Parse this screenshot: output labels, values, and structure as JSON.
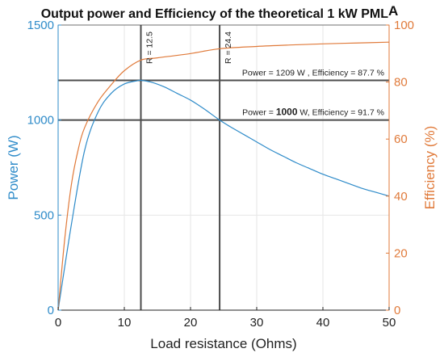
{
  "chart_data": {
    "type": "line",
    "title": "Output power and Efficiency of the theoretical 1 kW PML",
    "title_suffix": "A",
    "xlabel": "Load resistance (Ohms)",
    "ylabel_left": "Power (W)",
    "ylabel_right": "Efficiency (%)",
    "xlim": [
      0,
      50
    ],
    "ylim_left": [
      0,
      1500
    ],
    "ylim_right": [
      0,
      100
    ],
    "xticks": [
      "0",
      "10",
      "20",
      "30",
      "40",
      "50"
    ],
    "yticks_left": [
      "0",
      "500",
      "1000",
      "1500"
    ],
    "yticks_right": [
      "0",
      "20",
      "40",
      "60",
      "80",
      "100"
    ],
    "grid": true,
    "colors": {
      "power": "#2E8BC9",
      "efficiency": "#E07A3A",
      "reference": "#4D4D4D"
    },
    "series": [
      {
        "axis": "left",
        "x": [
          0,
          2,
          4,
          6,
          8,
          10,
          12,
          12.5,
          14,
          16,
          18,
          20,
          22,
          24.4,
          26,
          28,
          30,
          32,
          34,
          36,
          38,
          40,
          42,
          44,
          46,
          48,
          50
        ],
        "values": [
          0,
          450,
          840,
          1040,
          1140,
          1190,
          1207,
          1209,
          1200,
          1175,
          1140,
          1105,
          1060,
          1000,
          965,
          925,
          885,
          845,
          810,
          775,
          745,
          715,
          690,
          665,
          640,
          620,
          600
        ]
      },
      {
        "axis": "right",
        "x": [
          0,
          1,
          2,
          3,
          4,
          6,
          8,
          10,
          12.5,
          15,
          20,
          24.4,
          30,
          35,
          40,
          45,
          50
        ],
        "values": [
          0,
          25,
          44,
          56,
          64,
          73,
          79,
          84,
          87.7,
          88.5,
          90,
          91.7,
          92.5,
          93,
          93.4,
          93.7,
          94
        ]
      }
    ],
    "vlines": [
      {
        "x": 12.5,
        "label": "R = 12.5"
      },
      {
        "x": 24.4,
        "label": "R = 24.4"
      }
    ],
    "hlines": [
      {
        "y": 1209
      },
      {
        "y": 1000
      }
    ],
    "annotations": [
      {
        "text": "Power = 1209 W , Efficiency = 87.7 %"
      },
      {
        "pre": "Power = ",
        "bold": "1000",
        "post": " W, Efficiency = 91.7 %"
      }
    ]
  }
}
